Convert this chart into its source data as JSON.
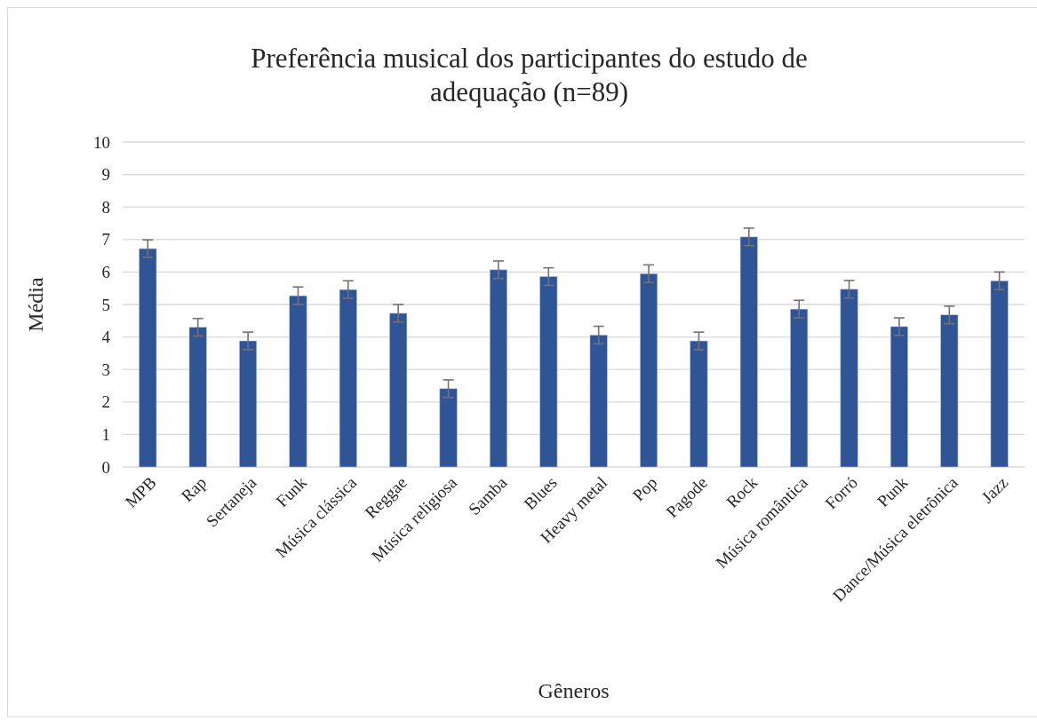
{
  "chart_data": {
    "type": "bar",
    "title": "Preferência musical dos participantes do estudo de adequação (n=89)",
    "xlabel": "Gêneros",
    "ylabel": "Média",
    "categories": [
      "MPB",
      "Rap",
      "Sertaneja",
      "Funk",
      "Música clássica",
      "Reggae",
      "Música religiosa",
      "Samba",
      "Blues",
      "Heavy metal",
      "Pop",
      "Pagode",
      "Rock",
      "Música romântica",
      "Forró",
      "Punk",
      "Dance/Música eletrônica",
      "Jazz"
    ],
    "series": [
      {
        "color": "#2f5597",
        "values": [
          6.72,
          4.3,
          3.88,
          5.27,
          5.46,
          4.73,
          2.41,
          6.07,
          5.86,
          4.06,
          5.95,
          3.88,
          7.08,
          4.86,
          5.47,
          4.32,
          4.68,
          5.73
        ],
        "errors": [
          0.27,
          0.27,
          0.27,
          0.27,
          0.27,
          0.27,
          0.27,
          0.27,
          0.27,
          0.27,
          0.27,
          0.27,
          0.27,
          0.27,
          0.27,
          0.27,
          0.27,
          0.27
        ]
      }
    ],
    "ylim": [
      0,
      10
    ],
    "yticks": [
      0,
      1,
      2,
      3,
      4,
      5,
      6,
      7,
      8,
      9,
      10
    ],
    "grid": "y"
  }
}
